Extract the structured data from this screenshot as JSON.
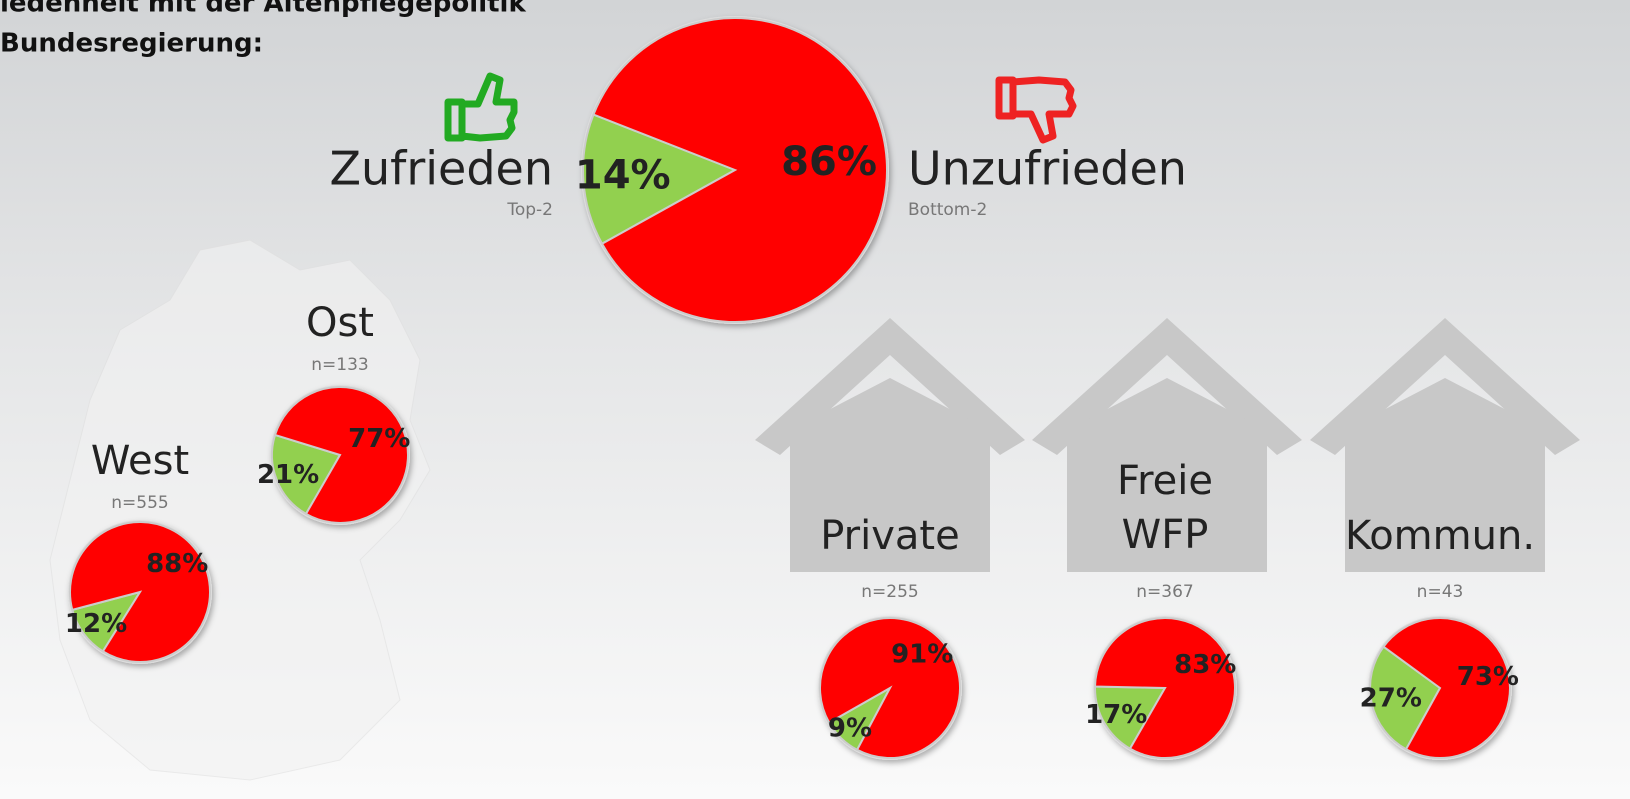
{
  "heading": {
    "line1": "iedenheit mit der Altenpflegepolitik",
    "line2": "Bundesregierung:"
  },
  "chart_data": [
    {
      "type": "pie",
      "categories": [
        "Zufrieden",
        "Unzufrieden"
      ],
      "category_notes": [
        "Top-2",
        "Bottom-2"
      ],
      "values": [
        14,
        86
      ],
      "value_labels": [
        "14%",
        "86%"
      ],
      "colors": [
        "#92d050",
        "#ff0000"
      ]
    },
    {
      "type": "pie",
      "title": [
        "Ost"
      ],
      "subtitle": "n=133",
      "values": [
        21,
        77
      ],
      "value_labels": [
        "21%",
        "77%"
      ],
      "colors": [
        "#92d050",
        "#ff0000"
      ]
    },
    {
      "type": "pie",
      "title": [
        "West"
      ],
      "subtitle": "n=555",
      "values": [
        12,
        88
      ],
      "value_labels": [
        "12%",
        "88%"
      ],
      "colors": [
        "#92d050",
        "#ff0000"
      ]
    },
    {
      "type": "pie",
      "title": [
        "Private"
      ],
      "subtitle": "n=255",
      "values": [
        9,
        91
      ],
      "value_labels": [
        "9%",
        "91%"
      ],
      "colors": [
        "#92d050",
        "#ff0000"
      ]
    },
    {
      "type": "pie",
      "title": [
        "Freie",
        "WFP"
      ],
      "subtitle": "n=367",
      "values": [
        17,
        83
      ],
      "value_labels": [
        "17%",
        "83%"
      ],
      "colors": [
        "#92d050",
        "#ff0000"
      ]
    },
    {
      "type": "pie",
      "title": [
        "Kommun."
      ],
      "subtitle": "n=43",
      "values": [
        27,
        73
      ],
      "value_labels": [
        "27%",
        "73%"
      ],
      "colors": [
        "#92d050",
        "#ff0000"
      ]
    }
  ]
}
